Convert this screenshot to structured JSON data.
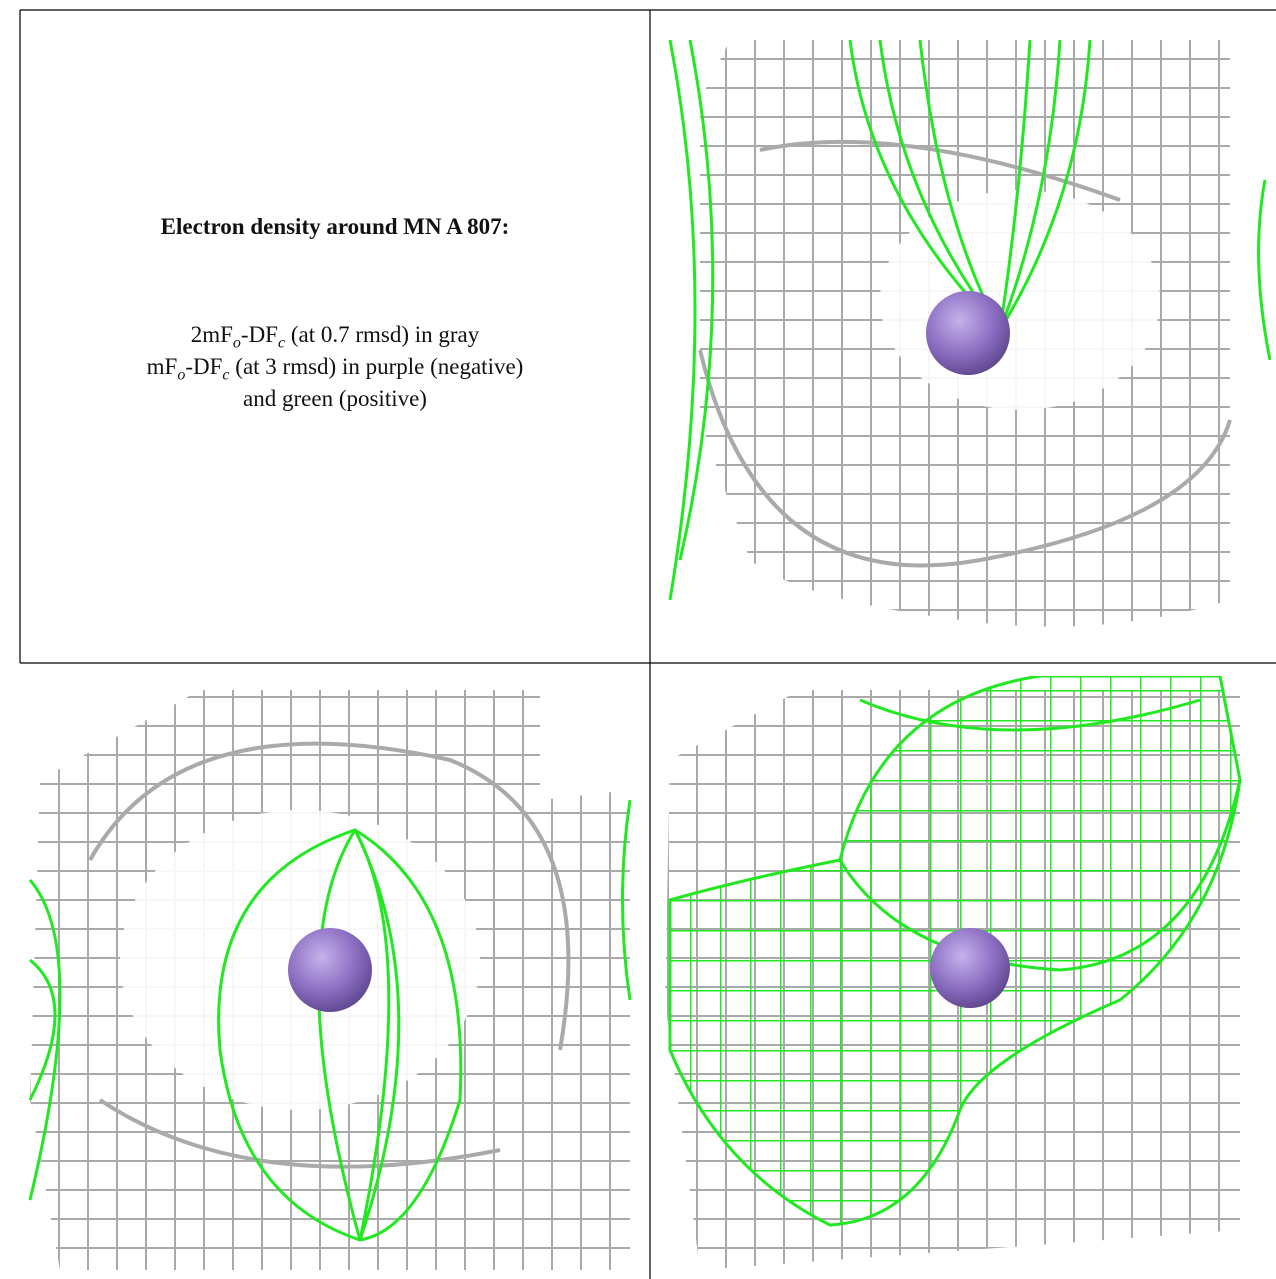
{
  "caption": {
    "title": "Electron density around MN A 807:",
    "line1": [
      "2mF",
      "o",
      "-DF",
      "c",
      " (at 0.7 rmsd) in gray"
    ],
    "line2": [
      "mF",
      "o",
      "-DF",
      "c",
      " (at 3 rmsd) in purple (negative)"
    ],
    "line3": "and green (positive)"
  }
}
